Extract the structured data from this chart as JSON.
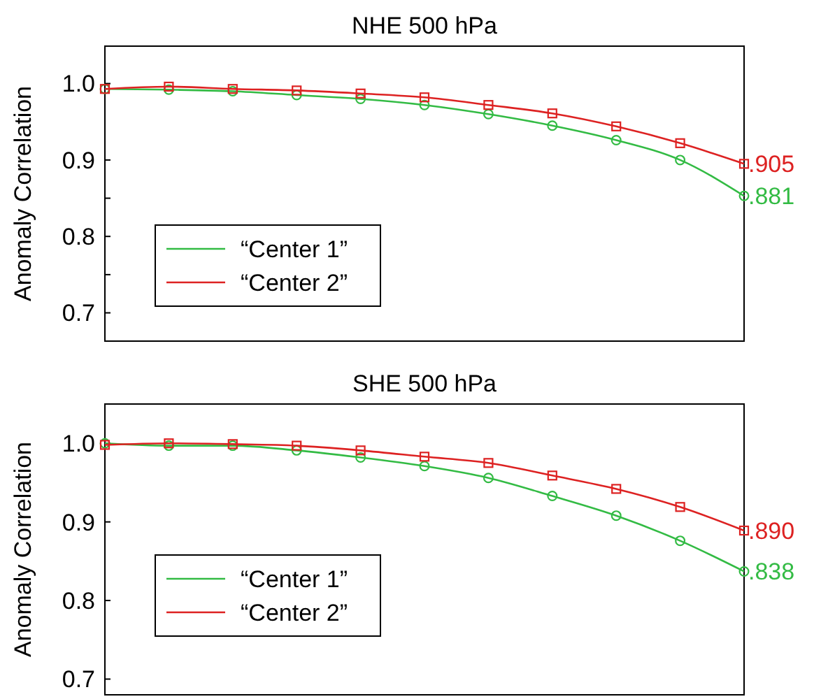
{
  "chart_data": [
    {
      "type": "line",
      "title": "NHE 500 hPa",
      "ylabel": "Anomaly Correlation",
      "categories": [
        null,
        null,
        null,
        null,
        null,
        null,
        null,
        null,
        null,
        null,
        null
      ],
      "ylim": [
        0.663,
        1.049
      ],
      "yticks": [
        {
          "value": 0.7,
          "label": "0.7"
        },
        {
          "value": 0.75,
          "label": null
        },
        {
          "value": 0.8,
          "label": "0.8"
        },
        {
          "value": 0.85,
          "label": null
        },
        {
          "value": 0.9,
          "label": "0.9"
        },
        {
          "value": 1.0,
          "label": "1.0"
        }
      ],
      "grid": false,
      "legend": "bottom left",
      "tick_labels": "y",
      "series": [
        {
          "name": "“Center 1”",
          "color": "#33bb44",
          "marker": "circle",
          "values": [
            0.993,
            0.992,
            0.99,
            0.985,
            0.98,
            0.972,
            0.96,
            0.945,
            0.926,
            0.9,
            0.853
          ]
        },
        {
          "name": "“Center 2”",
          "color": "#dd2222",
          "marker": "square",
          "values": [
            0.993,
            0.996,
            0.993,
            0.991,
            0.987,
            0.982,
            0.972,
            0.961,
            0.944,
            0.922,
            0.895
          ]
        }
      ],
      "annotations": [
        ".905",
        ".881"
      ]
    },
    {
      "type": "line",
      "title": "SHE 500 hPa",
      "ylabel": "Anomaly Correlation",
      "categories": [
        null,
        null,
        null,
        null,
        null,
        null,
        null,
        null,
        null,
        null,
        null
      ],
      "ylim": [
        0.68,
        1.05
      ],
      "yticks": [
        {
          "value": 0.7,
          "label": "0.7"
        },
        {
          "value": 0.8,
          "label": "0.8"
        },
        {
          "value": 0.9,
          "label": "0.9"
        },
        {
          "value": 1.0,
          "label": "1.0"
        }
      ],
      "grid": false,
      "legend": "bottom left",
      "tick_labels": "y",
      "series": [
        {
          "name": "“Center 1”",
          "color": "#33bb44",
          "marker": "circle",
          "values": [
            1.0,
            0.997,
            0.997,
            0.991,
            0.982,
            0.971,
            0.956,
            0.933,
            0.908,
            0.876,
            0.837
          ]
        },
        {
          "name": "“Center 2”",
          "color": "#dd2222",
          "marker": "square",
          "values": [
            0.998,
            1.0,
            0.999,
            0.997,
            0.991,
            0.983,
            0.975,
            0.959,
            0.942,
            0.919,
            0.889
          ]
        }
      ],
      "annotations": [
        ".890",
        ".838"
      ]
    }
  ]
}
